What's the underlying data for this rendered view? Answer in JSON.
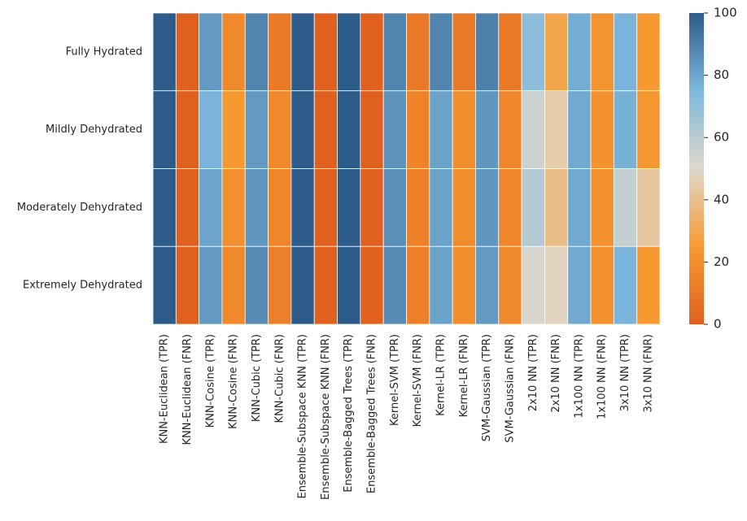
{
  "chart_data": {
    "type": "heatmap",
    "title": "",
    "xlabel": "",
    "ylabel": "",
    "rows": [
      "Fully Hydrated",
      "Mildly Dehydrated",
      "Moderately Dehydrated",
      "Extremely Dehydrated"
    ],
    "columns": [
      "KNN-Euclidean (TPR)",
      "KNN-Euclidean (FNR)",
      "KNN-Cosine (TPR)",
      "KNN-Cosine (FNR)",
      "KNN-Cubic (TPR)",
      "KNN-Cubic (FNR)",
      "Ensemble-Subspace KNN (TPR)",
      "Ensemble-Subspace KNN (FNR)",
      "Ensemble-Bagged Trees (TPR)",
      "Ensemble-Bagged Trees (FNR)",
      "Kernel-SVM (TPR)",
      "Kernel-SVM (FNR)",
      "Kernel-LR (TPR)",
      "Kernel-LR (FNR)",
      "SVM-Gaussian (TPR)",
      "SVM-Gaussian (FNR)",
      "2x10 NN (TPR)",
      "2x10 NN (FNR)",
      "1x100 NN (TPR)",
      "1x100 NN (FNR)",
      "3x10 NN (TPR)",
      "3x10 NN (FNR)"
    ],
    "values": [
      [
        100,
        0,
        83,
        17,
        89,
        11,
        100,
        0,
        100,
        0,
        89,
        11,
        89,
        11,
        90,
        10,
        71,
        29,
        78,
        22,
        76,
        24
      ],
      [
        100,
        0,
        76,
        24,
        83,
        17,
        100,
        0,
        100,
        0,
        85,
        15,
        81,
        19,
        84,
        16,
        55,
        45,
        79,
        21,
        77,
        23
      ],
      [
        100,
        0,
        80,
        20,
        84,
        16,
        100,
        0,
        100,
        0,
        86,
        14,
        81,
        19,
        84,
        16,
        61,
        39,
        79,
        21,
        57,
        43
      ],
      [
        100,
        0,
        83,
        17,
        87,
        13,
        100,
        0,
        100,
        0,
        87,
        13,
        81,
        19,
        83,
        17,
        52,
        48,
        79,
        21,
        76,
        24
      ]
    ],
    "colorbar": {
      "range": [
        0,
        100
      ],
      "ticks": [
        "0",
        "20",
        "40",
        "60",
        "80",
        "100"
      ],
      "colors": {
        "low": "#e0601f",
        "mid_low": "#f79b32",
        "center": "#dfd8cc",
        "mid_high": "#7eb8dd",
        "high": "#2d5b8a"
      }
    }
  }
}
